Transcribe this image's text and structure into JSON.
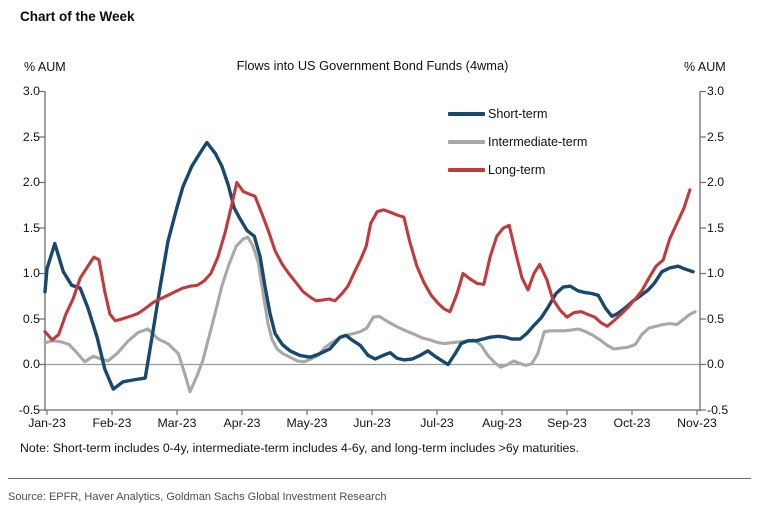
{
  "page": {
    "header": "Chart of the Week",
    "note": "Note: Short-term includes 0-4y, intermediate-term includes 4-6y, and long-term includes >6y maturities.",
    "source": "Source: EPFR, Haver Analytics, Goldman Sachs Global Investment Research"
  },
  "chart_data": {
    "type": "line",
    "title": "Flows into US Government Bond Funds (4wma)",
    "ylabel_left": "% AUM",
    "ylabel_right": "% AUM",
    "ylim": [
      -0.5,
      3.0
    ],
    "y_ticks": [
      3.0,
      2.5,
      2.0,
      1.5,
      1.0,
      0.5,
      0.0,
      -0.5
    ],
    "y_tick_labels": [
      "3.0",
      "2.5",
      "2.0",
      "1.5",
      "1.0",
      "0.5",
      "0.0",
      "-0.5"
    ],
    "x_tick_labels": [
      "Jan-23",
      "Feb-23",
      "Mar-23",
      "Apr-23",
      "May-23",
      "Jun-23",
      "Jul-23",
      "Aug-23",
      "Sep-23",
      "Oct-23",
      "Nov-23"
    ],
    "x_unit": "month_index_0_is_Jan-23",
    "grid": false,
    "zero_line": true,
    "legend_position": "inside-upper-right",
    "axis_color": "#6d6e71",
    "zero_line_color": "#9a9a9a",
    "series": [
      {
        "name": "Short-term",
        "color": "#17486e",
        "points": [
          [
            -0.03,
            0.8
          ],
          [
            0.0,
            1.05
          ],
          [
            0.12,
            1.33
          ],
          [
            0.25,
            1.02
          ],
          [
            0.38,
            0.87
          ],
          [
            0.51,
            0.84
          ],
          [
            0.63,
            0.62
          ],
          [
            0.77,
            0.3
          ],
          [
            0.89,
            -0.05
          ],
          [
            1.02,
            -0.27
          ],
          [
            1.17,
            -0.19
          ],
          [
            1.32,
            -0.17
          ],
          [
            1.51,
            -0.15
          ],
          [
            1.63,
            0.36
          ],
          [
            1.74,
            0.85
          ],
          [
            1.86,
            1.35
          ],
          [
            1.99,
            1.7
          ],
          [
            2.09,
            1.95
          ],
          [
            2.23,
            2.18
          ],
          [
            2.35,
            2.32
          ],
          [
            2.46,
            2.44
          ],
          [
            2.59,
            2.32
          ],
          [
            2.69,
            2.18
          ],
          [
            2.79,
            1.97
          ],
          [
            2.88,
            1.72
          ],
          [
            2.97,
            1.6
          ],
          [
            3.08,
            1.47
          ],
          [
            3.19,
            1.41
          ],
          [
            3.28,
            1.18
          ],
          [
            3.35,
            0.87
          ],
          [
            3.43,
            0.56
          ],
          [
            3.51,
            0.34
          ],
          [
            3.62,
            0.22
          ],
          [
            3.74,
            0.15
          ],
          [
            3.89,
            0.1
          ],
          [
            4.05,
            0.08
          ],
          [
            4.2,
            0.12
          ],
          [
            4.35,
            0.17
          ],
          [
            4.51,
            0.3
          ],
          [
            4.6,
            0.32
          ],
          [
            4.69,
            0.27
          ],
          [
            4.82,
            0.21
          ],
          [
            4.94,
            0.1
          ],
          [
            5.05,
            0.06
          ],
          [
            5.17,
            0.1
          ],
          [
            5.28,
            0.13
          ],
          [
            5.38,
            0.07
          ],
          [
            5.49,
            0.05
          ],
          [
            5.62,
            0.06
          ],
          [
            5.74,
            0.1
          ],
          [
            5.86,
            0.15
          ],
          [
            5.97,
            0.09
          ],
          [
            6.08,
            0.04
          ],
          [
            6.17,
            0.0
          ],
          [
            6.28,
            0.12
          ],
          [
            6.37,
            0.23
          ],
          [
            6.48,
            0.26
          ],
          [
            6.6,
            0.26
          ],
          [
            6.71,
            0.28
          ],
          [
            6.82,
            0.3
          ],
          [
            6.94,
            0.31
          ],
          [
            7.05,
            0.3
          ],
          [
            7.15,
            0.28
          ],
          [
            7.28,
            0.28
          ],
          [
            7.38,
            0.34
          ],
          [
            7.49,
            0.43
          ],
          [
            7.6,
            0.51
          ],
          [
            7.71,
            0.63
          ],
          [
            7.83,
            0.78
          ],
          [
            7.94,
            0.85
          ],
          [
            8.05,
            0.86
          ],
          [
            8.17,
            0.81
          ],
          [
            8.28,
            0.79
          ],
          [
            8.38,
            0.78
          ],
          [
            8.48,
            0.76
          ],
          [
            8.59,
            0.62
          ],
          [
            8.69,
            0.53
          ],
          [
            8.78,
            0.56
          ],
          [
            8.89,
            0.62
          ],
          [
            9.02,
            0.7
          ],
          [
            9.12,
            0.75
          ],
          [
            9.25,
            0.82
          ],
          [
            9.35,
            0.9
          ],
          [
            9.46,
            1.02
          ],
          [
            9.58,
            1.06
          ],
          [
            9.71,
            1.08
          ],
          [
            9.81,
            1.05
          ],
          [
            9.94,
            1.02
          ]
        ]
      },
      {
        "name": "Intermediate-term",
        "color": "#a8a8a8",
        "points": [
          [
            -0.03,
            0.24
          ],
          [
            0.09,
            0.26
          ],
          [
            0.22,
            0.25
          ],
          [
            0.34,
            0.22
          ],
          [
            0.46,
            0.13
          ],
          [
            0.58,
            0.03
          ],
          [
            0.71,
            0.09
          ],
          [
            0.83,
            0.06
          ],
          [
            0.94,
            0.04
          ],
          [
            1.09,
            0.13
          ],
          [
            1.25,
            0.26
          ],
          [
            1.4,
            0.35
          ],
          [
            1.55,
            0.39
          ],
          [
            1.71,
            0.28
          ],
          [
            1.86,
            0.23
          ],
          [
            2.02,
            0.12
          ],
          [
            2.11,
            -0.08
          ],
          [
            2.2,
            -0.3
          ],
          [
            2.31,
            -0.12
          ],
          [
            2.4,
            0.05
          ],
          [
            2.49,
            0.3
          ],
          [
            2.6,
            0.6
          ],
          [
            2.69,
            0.86
          ],
          [
            2.8,
            1.1
          ],
          [
            2.91,
            1.3
          ],
          [
            3.02,
            1.38
          ],
          [
            3.09,
            1.4
          ],
          [
            3.17,
            1.3
          ],
          [
            3.25,
            1.12
          ],
          [
            3.32,
            0.8
          ],
          [
            3.4,
            0.45
          ],
          [
            3.46,
            0.28
          ],
          [
            3.54,
            0.17
          ],
          [
            3.63,
            0.12
          ],
          [
            3.74,
            0.08
          ],
          [
            3.85,
            0.04
          ],
          [
            3.95,
            0.03
          ],
          [
            4.06,
            0.06
          ],
          [
            4.17,
            0.1
          ],
          [
            4.28,
            0.19
          ],
          [
            4.38,
            0.24
          ],
          [
            4.49,
            0.29
          ],
          [
            4.6,
            0.32
          ],
          [
            4.71,
            0.34
          ],
          [
            4.82,
            0.36
          ],
          [
            4.92,
            0.4
          ],
          [
            5.02,
            0.52
          ],
          [
            5.11,
            0.53
          ],
          [
            5.22,
            0.48
          ],
          [
            5.32,
            0.44
          ],
          [
            5.43,
            0.4
          ],
          [
            5.55,
            0.36
          ],
          [
            5.66,
            0.33
          ],
          [
            5.78,
            0.29
          ],
          [
            5.89,
            0.27
          ],
          [
            6.02,
            0.24
          ],
          [
            6.12,
            0.23
          ],
          [
            6.23,
            0.24
          ],
          [
            6.35,
            0.25
          ],
          [
            6.46,
            0.26
          ],
          [
            6.57,
            0.27
          ],
          [
            6.68,
            0.21
          ],
          [
            6.78,
            0.1
          ],
          [
            6.89,
            0.02
          ],
          [
            6.98,
            -0.03
          ],
          [
            7.09,
            0.0
          ],
          [
            7.18,
            0.04
          ],
          [
            7.28,
            0.01
          ],
          [
            7.37,
            -0.01
          ],
          [
            7.46,
            0.01
          ],
          [
            7.55,
            0.12
          ],
          [
            7.65,
            0.36
          ],
          [
            7.75,
            0.37
          ],
          [
            7.86,
            0.37
          ],
          [
            7.97,
            0.37
          ],
          [
            8.08,
            0.38
          ],
          [
            8.18,
            0.39
          ],
          [
            8.29,
            0.36
          ],
          [
            8.4,
            0.32
          ],
          [
            8.51,
            0.27
          ],
          [
            8.62,
            0.21
          ],
          [
            8.72,
            0.17
          ],
          [
            8.83,
            0.18
          ],
          [
            8.94,
            0.19
          ],
          [
            9.05,
            0.22
          ],
          [
            9.15,
            0.33
          ],
          [
            9.26,
            0.4
          ],
          [
            9.37,
            0.42
          ],
          [
            9.48,
            0.44
          ],
          [
            9.58,
            0.45
          ],
          [
            9.69,
            0.44
          ],
          [
            9.8,
            0.5
          ],
          [
            9.89,
            0.55
          ],
          [
            9.97,
            0.58
          ]
        ]
      },
      {
        "name": "Long-term",
        "color": "#c13b3c",
        "points": [
          [
            -0.03,
            0.36
          ],
          [
            0.08,
            0.27
          ],
          [
            0.18,
            0.33
          ],
          [
            0.29,
            0.55
          ],
          [
            0.4,
            0.72
          ],
          [
            0.51,
            0.95
          ],
          [
            0.62,
            1.07
          ],
          [
            0.72,
            1.18
          ],
          [
            0.8,
            1.15
          ],
          [
            0.89,
            0.8
          ],
          [
            0.97,
            0.55
          ],
          [
            1.05,
            0.48
          ],
          [
            1.15,
            0.5
          ],
          [
            1.28,
            0.53
          ],
          [
            1.4,
            0.56
          ],
          [
            1.52,
            0.62
          ],
          [
            1.63,
            0.68
          ],
          [
            1.74,
            0.72
          ],
          [
            1.86,
            0.76
          ],
          [
            1.97,
            0.8
          ],
          [
            2.09,
            0.84
          ],
          [
            2.2,
            0.86
          ],
          [
            2.31,
            0.87
          ],
          [
            2.42,
            0.92
          ],
          [
            2.52,
            1.0
          ],
          [
            2.63,
            1.18
          ],
          [
            2.74,
            1.45
          ],
          [
            2.83,
            1.72
          ],
          [
            2.92,
            2.0
          ],
          [
            3.02,
            1.9
          ],
          [
            3.12,
            1.87
          ],
          [
            3.2,
            1.85
          ],
          [
            3.31,
            1.65
          ],
          [
            3.4,
            1.48
          ],
          [
            3.51,
            1.25
          ],
          [
            3.62,
            1.1
          ],
          [
            3.72,
            1.0
          ],
          [
            3.83,
            0.9
          ],
          [
            3.94,
            0.8
          ],
          [
            4.05,
            0.74
          ],
          [
            4.14,
            0.7
          ],
          [
            4.25,
            0.71
          ],
          [
            4.34,
            0.72
          ],
          [
            4.43,
            0.7
          ],
          [
            4.54,
            0.78
          ],
          [
            4.63,
            0.86
          ],
          [
            4.74,
            1.03
          ],
          [
            4.83,
            1.16
          ],
          [
            4.91,
            1.3
          ],
          [
            4.98,
            1.55
          ],
          [
            5.08,
            1.68
          ],
          [
            5.18,
            1.7
          ],
          [
            5.29,
            1.67
          ],
          [
            5.4,
            1.64
          ],
          [
            5.49,
            1.62
          ],
          [
            5.58,
            1.35
          ],
          [
            5.69,
            1.08
          ],
          [
            5.8,
            0.9
          ],
          [
            5.91,
            0.76
          ],
          [
            6.02,
            0.67
          ],
          [
            6.11,
            0.61
          ],
          [
            6.2,
            0.58
          ],
          [
            6.31,
            0.78
          ],
          [
            6.4,
            1.0
          ],
          [
            6.51,
            0.94
          ],
          [
            6.62,
            0.89
          ],
          [
            6.72,
            0.88
          ],
          [
            6.82,
            1.19
          ],
          [
            6.92,
            1.41
          ],
          [
            7.02,
            1.5
          ],
          [
            7.11,
            1.53
          ],
          [
            7.22,
            1.2
          ],
          [
            7.31,
            0.95
          ],
          [
            7.4,
            0.82
          ],
          [
            7.49,
            1.0
          ],
          [
            7.58,
            1.1
          ],
          [
            7.69,
            0.93
          ],
          [
            7.78,
            0.72
          ],
          [
            7.89,
            0.6
          ],
          [
            8.0,
            0.52
          ],
          [
            8.11,
            0.57
          ],
          [
            8.22,
            0.58
          ],
          [
            8.32,
            0.55
          ],
          [
            8.43,
            0.52
          ],
          [
            8.52,
            0.46
          ],
          [
            8.62,
            0.42
          ],
          [
            8.72,
            0.48
          ],
          [
            8.83,
            0.55
          ],
          [
            8.94,
            0.63
          ],
          [
            9.05,
            0.72
          ],
          [
            9.15,
            0.81
          ],
          [
            9.26,
            0.95
          ],
          [
            9.37,
            1.08
          ],
          [
            9.48,
            1.15
          ],
          [
            9.58,
            1.38
          ],
          [
            9.69,
            1.55
          ],
          [
            9.8,
            1.72
          ],
          [
            9.89,
            1.92
          ]
        ]
      }
    ]
  }
}
